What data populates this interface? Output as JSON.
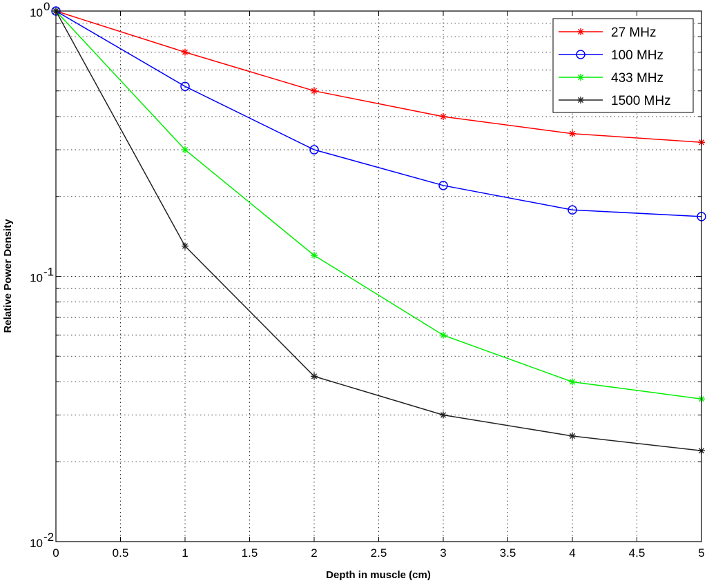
{
  "chart_data": {
    "type": "line",
    "title": "",
    "xlabel": "Depth in muscle (cm)",
    "ylabel": "Relative Power Density",
    "xlim": [
      0,
      5
    ],
    "ylim": [
      0.01,
      1
    ],
    "yscale": "log",
    "grid": true,
    "legend_position": "top-right",
    "x_ticks": [
      0,
      0.5,
      1,
      1.5,
      2,
      2.5,
      3,
      3.5,
      4,
      4.5,
      5
    ],
    "x_tick_labels": [
      "0",
      "0.5",
      "1",
      "1.5",
      "2",
      "2.5",
      "3",
      "3.5",
      "4",
      "4.5",
      "5"
    ],
    "y_ticks": [
      {
        "value": 1,
        "base": "10",
        "exp": "0"
      },
      {
        "value": 0.1,
        "base": "10",
        "exp": "-1"
      },
      {
        "value": 0.01,
        "base": "10",
        "exp": "-2"
      }
    ],
    "x": [
      0,
      1,
      2,
      3,
      4,
      5
    ],
    "series": [
      {
        "name": "27 MHz",
        "color": "#ff0000",
        "marker": "star",
        "values": [
          1.0,
          0.7,
          0.5,
          0.4,
          0.345,
          0.32
        ]
      },
      {
        "name": "100 MHz",
        "color": "#0000ff",
        "marker": "circle",
        "values": [
          1.0,
          0.52,
          0.3,
          0.22,
          0.178,
          0.168
        ]
      },
      {
        "name": "433 MHz",
        "color": "#00ee00",
        "marker": "star",
        "values": [
          1.0,
          0.3,
          0.12,
          0.06,
          0.04,
          0.0345
        ]
      },
      {
        "name": "1500 MHz",
        "color": "#222222",
        "marker": "star",
        "values": [
          1.0,
          0.13,
          0.042,
          0.03,
          0.025,
          0.022
        ]
      }
    ]
  }
}
